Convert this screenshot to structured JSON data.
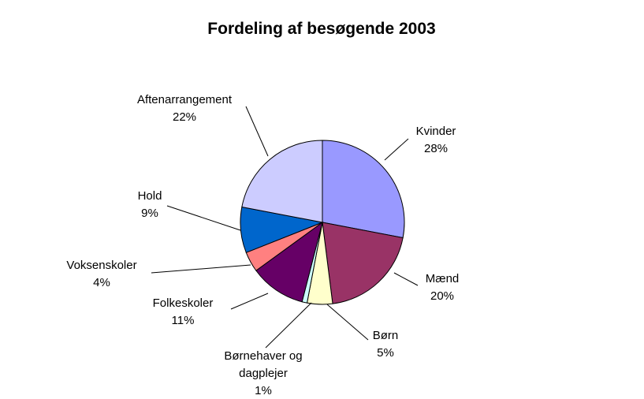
{
  "chart_data": {
    "type": "pie",
    "title": "Fordeling af besøgende 2003",
    "slices": [
      {
        "label": [
          "Kvinder"
        ],
        "value": 28,
        "pct": "28%",
        "color": "#9999FF"
      },
      {
        "label": [
          "Mænd"
        ],
        "value": 20,
        "pct": "20%",
        "color": "#993366"
      },
      {
        "label": [
          "Børn"
        ],
        "value": 5,
        "pct": "5%",
        "color": "#FFFFCC"
      },
      {
        "label": [
          "Børnehaver og",
          "dagplejer"
        ],
        "value": 1,
        "pct": "1%",
        "color": "#CCFFFF"
      },
      {
        "label": [
          "Folkeskoler"
        ],
        "value": 11,
        "pct": "11%",
        "color": "#660066"
      },
      {
        "label": [
          "Voksenskoler"
        ],
        "value": 4,
        "pct": "4%",
        "color": "#FF8080"
      },
      {
        "label": [
          "Hold"
        ],
        "value": 9,
        "pct": "9%",
        "color": "#0066CC"
      },
      {
        "label": [
          "Aftenarrangement"
        ],
        "value": 22,
        "pct": "22%",
        "color": "#CCCCFF"
      }
    ],
    "legend": "none"
  }
}
